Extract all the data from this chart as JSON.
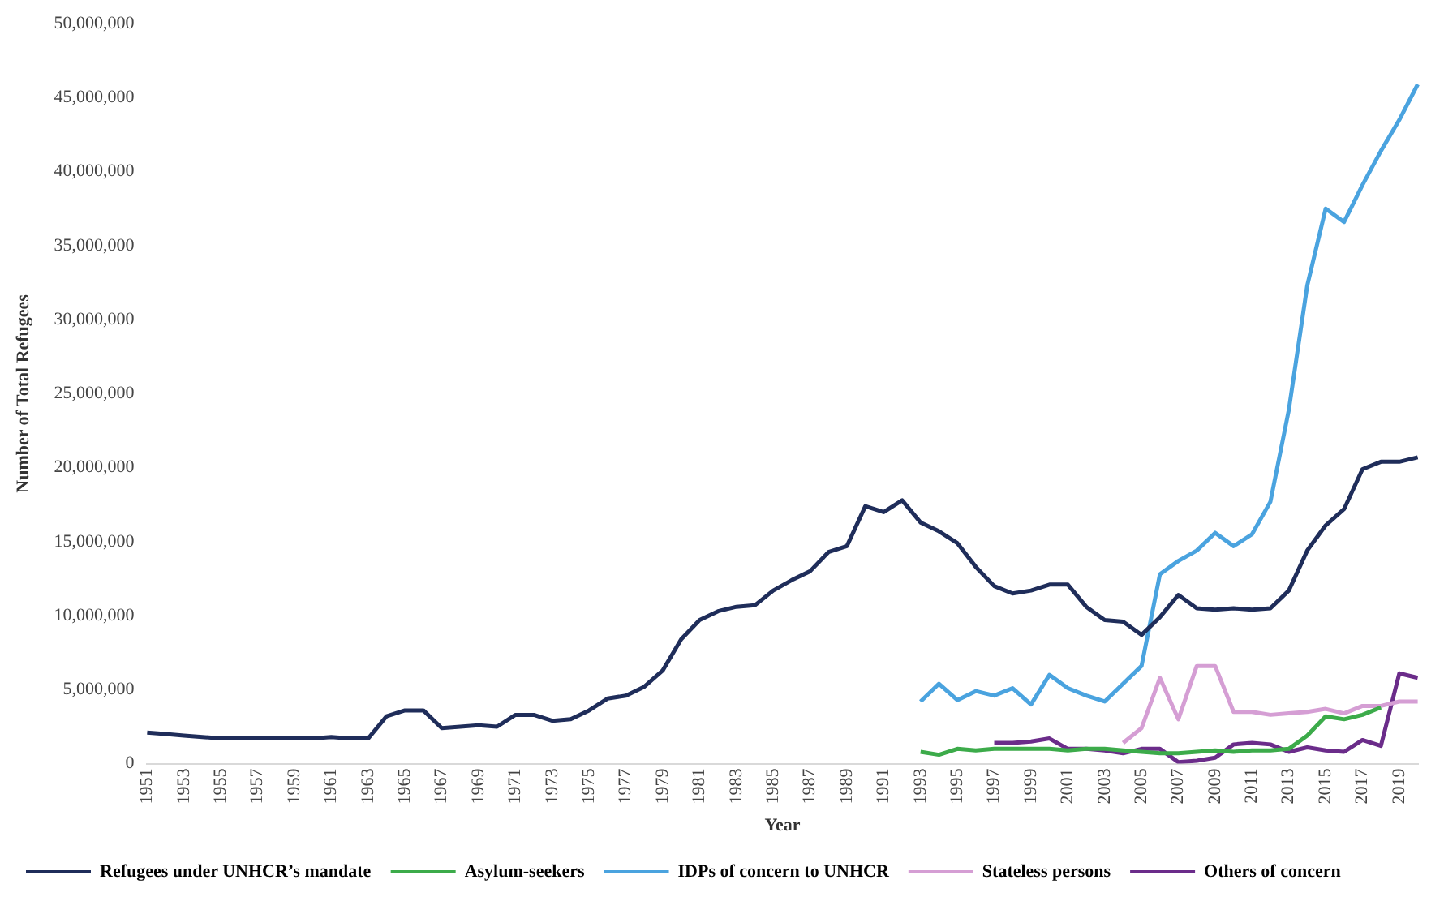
{
  "chart_data": {
    "type": "line",
    "xlabel": "Year",
    "ylabel": "Number of Total Refugees",
    "categories": [
      "1951",
      null,
      "1953",
      null,
      "1955",
      null,
      "1957",
      null,
      "1959",
      null,
      "1961",
      null,
      "1963",
      null,
      "1965",
      null,
      "1967",
      null,
      "1969",
      null,
      "1971",
      null,
      "1973",
      null,
      "1975",
      null,
      "1977",
      null,
      "1979",
      null,
      "1981",
      null,
      "1983",
      null,
      "1985",
      null,
      "1987",
      null,
      "1989",
      null,
      "1991",
      null,
      "1993",
      null,
      "1995",
      null,
      "1997",
      null,
      "1999",
      null,
      "2001",
      null,
      "2003",
      null,
      "2005",
      null,
      "2007",
      null,
      "2009",
      null,
      "2011",
      null,
      "2013",
      null,
      "2015",
      null,
      "2017",
      null,
      "2019",
      null
    ],
    "series": [
      {
        "name": "Refugees under UNHCR’s mandate",
        "color": "#1f2d5a",
        "values": [
          2100000,
          2000000,
          1900000,
          1800000,
          1700000,
          1700000,
          1700000,
          1700000,
          1700000,
          1700000,
          1800000,
          1700000,
          1700000,
          3200000,
          3600000,
          3600000,
          2400000,
          2500000,
          2600000,
          2500000,
          3300000,
          3300000,
          2900000,
          3000000,
          3600000,
          4400000,
          4600000,
          5200000,
          6300000,
          8400000,
          9700000,
          10300000,
          10600000,
          10700000,
          11700000,
          12400000,
          13000000,
          14300000,
          14700000,
          17400000,
          17000000,
          17800000,
          16300000,
          15700000,
          14900000,
          13300000,
          12000000,
          11500000,
          11700000,
          12100000,
          12100000,
          10600000,
          9700000,
          9600000,
          8700000,
          9900000,
          11400000,
          10500000,
          10400000,
          10500000,
          10400000,
          10500000,
          11700000,
          14400000,
          16100000,
          17200000,
          19900000,
          20400000,
          20400000,
          20700000
        ]
      },
      {
        "name": "Asylum-seekers",
        "color": "#3cab4a",
        "values": [
          null,
          null,
          null,
          null,
          null,
          null,
          null,
          null,
          null,
          null,
          null,
          null,
          null,
          null,
          null,
          null,
          null,
          null,
          null,
          null,
          null,
          null,
          null,
          null,
          null,
          null,
          null,
          null,
          null,
          null,
          null,
          null,
          null,
          null,
          null,
          null,
          null,
          null,
          null,
          null,
          null,
          null,
          800000,
          600000,
          1000000,
          900000,
          1000000,
          1000000,
          1000000,
          1000000,
          900000,
          1000000,
          1000000,
          900000,
          800000,
          700000,
          700000,
          800000,
          900000,
          800000,
          900000,
          900000,
          1000000,
          1900000,
          3200000,
          3000000,
          3300000,
          3800000,
          null,
          null
        ]
      },
      {
        "name": "IDPs of concern to UNHCR",
        "color": "#4aa3df",
        "values": [
          null,
          null,
          null,
          null,
          null,
          null,
          null,
          null,
          null,
          null,
          null,
          null,
          null,
          null,
          null,
          null,
          null,
          null,
          null,
          null,
          null,
          null,
          null,
          null,
          null,
          null,
          null,
          null,
          null,
          null,
          null,
          null,
          null,
          null,
          null,
          null,
          null,
          null,
          null,
          null,
          null,
          null,
          4200000,
          5400000,
          4300000,
          4900000,
          4600000,
          5100000,
          4000000,
          6000000,
          5100000,
          4600000,
          4200000,
          5400000,
          6600000,
          12800000,
          13700000,
          14400000,
          15600000,
          14700000,
          15500000,
          17700000,
          23900000,
          32300000,
          37500000,
          36600000,
          39100000,
          41400000,
          43500000,
          45900000
        ]
      },
      {
        "name": "Stateless persons",
        "color": "#d59ed4",
        "values": [
          null,
          null,
          null,
          null,
          null,
          null,
          null,
          null,
          null,
          null,
          null,
          null,
          null,
          null,
          null,
          null,
          null,
          null,
          null,
          null,
          null,
          null,
          null,
          null,
          null,
          null,
          null,
          null,
          null,
          null,
          null,
          null,
          null,
          null,
          null,
          null,
          null,
          null,
          null,
          null,
          null,
          null,
          null,
          null,
          null,
          null,
          null,
          null,
          null,
          null,
          null,
          null,
          null,
          1400000,
          2400000,
          5800000,
          3000000,
          6600000,
          6600000,
          3500000,
          3500000,
          3300000,
          3400000,
          3500000,
          3700000,
          3400000,
          3900000,
          3900000,
          4200000,
          4200000
        ]
      },
      {
        "name": "Others of concern",
        "color": "#6b2c8a",
        "values": [
          null,
          null,
          null,
          null,
          null,
          null,
          null,
          null,
          null,
          null,
          null,
          null,
          null,
          null,
          null,
          null,
          null,
          null,
          null,
          null,
          null,
          null,
          null,
          null,
          null,
          null,
          null,
          null,
          null,
          null,
          null,
          null,
          null,
          null,
          null,
          null,
          null,
          null,
          null,
          null,
          null,
          null,
          null,
          null,
          null,
          null,
          1400000,
          1400000,
          1500000,
          1700000,
          1000000,
          1000000,
          900000,
          700000,
          1000000,
          1000000,
          100000,
          200000,
          400000,
          1300000,
          1400000,
          1300000,
          800000,
          1100000,
          900000,
          800000,
          1600000,
          1200000,
          6100000,
          5800000
        ]
      }
    ],
    "ylim": [
      0,
      50000000
    ],
    "yticks": [
      0,
      {
        "value": 5000000,
        "label": "5,000,000"
      },
      {
        "value": 10000000,
        "label": "10,000,000"
      },
      {
        "value": 15000000,
        "label": "15,000,000"
      },
      {
        "value": 20000000,
        "label": "20,000,000"
      },
      {
        "value": 25000000,
        "label": "25,000,000"
      },
      {
        "value": 30000000,
        "label": "30,000,000"
      },
      {
        "value": 35000000,
        "label": "35,000,000"
      },
      {
        "value": 40000000,
        "label": "40,000,000"
      },
      {
        "value": 45000000,
        "label": "45,000,000"
      },
      {
        "value": 50000000,
        "label": "50,000,000"
      }
    ],
    "grid": false,
    "legend": "bottom",
    "marker": "none",
    "line_style": "solid"
  }
}
